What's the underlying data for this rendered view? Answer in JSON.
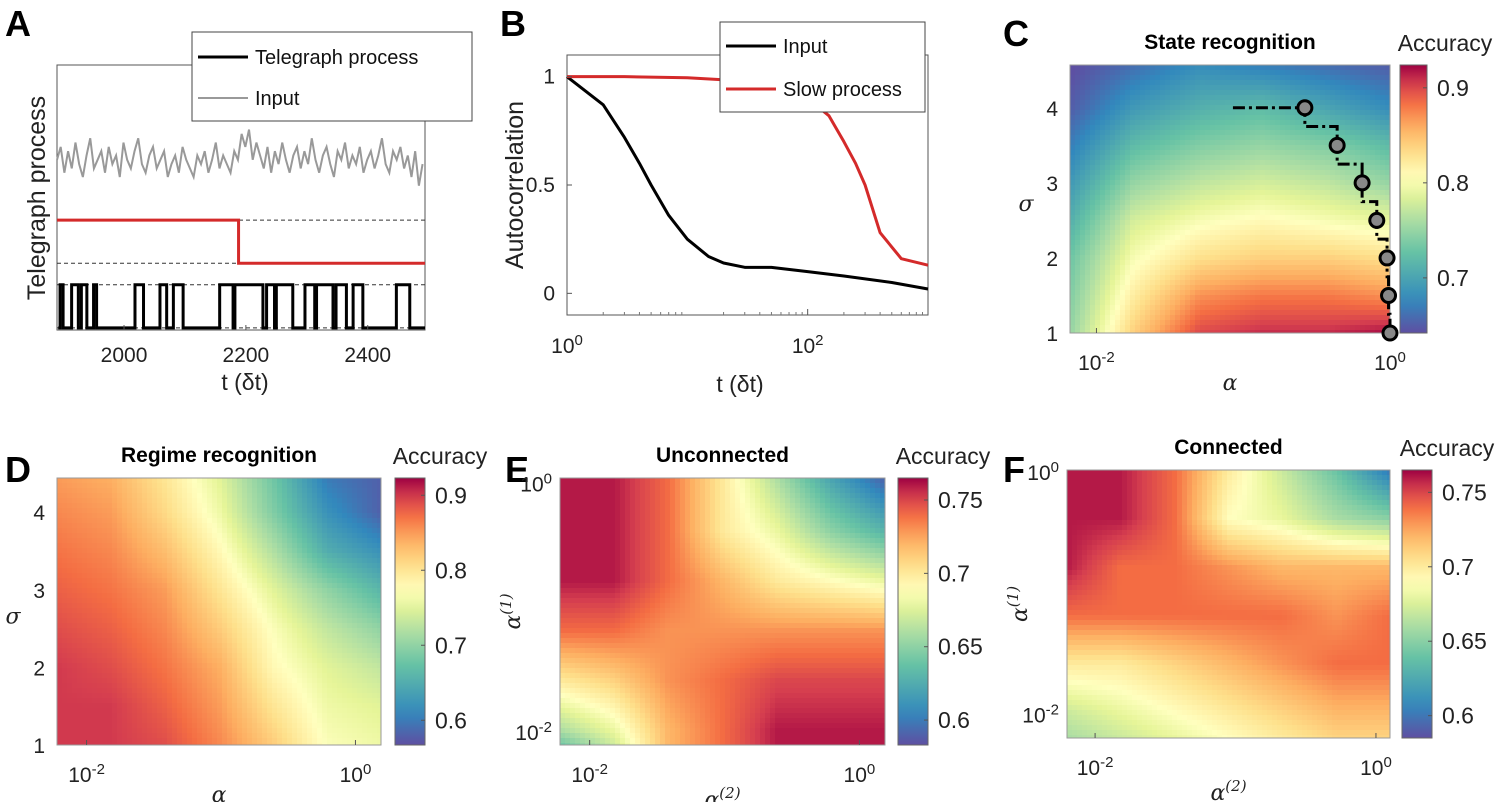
{
  "chart_data": [
    {
      "panel": "A",
      "type": "line",
      "ylabel": "Telegraph process",
      "xlabel": "t (δt)",
      "xlim": [
        1890,
        2494
      ],
      "ylim": [
        -0.05,
        6.1
      ],
      "xticks": [
        "2000",
        "2200",
        "2400"
      ],
      "xtick_values": [
        2000,
        2200,
        2400
      ],
      "legend": [
        "Telegraph process",
        "Input"
      ],
      "legend_placement": "top-right",
      "colors": {
        "telegraph": "#000000",
        "input": "#999999",
        "slow": "#d42a2a"
      },
      "telegraph_high_intervals": [
        [
          1895,
          1900
        ],
        [
          1914,
          1925
        ],
        [
          1930,
          1939
        ],
        [
          1950,
          1955
        ],
        [
          2018,
          2032
        ],
        [
          2059,
          2070
        ],
        [
          2081,
          2097
        ],
        [
          2157,
          2179
        ],
        [
          2182,
          2228
        ],
        [
          2234,
          2247
        ],
        [
          2250,
          2277
        ],
        [
          2297,
          2313
        ],
        [
          2316,
          2343
        ],
        [
          2348,
          2365
        ],
        [
          2376,
          2392
        ],
        [
          2447,
          2469
        ]
      ],
      "telegraph_levels": [
        0,
        1
      ],
      "slow_process": {
        "switch_t": 2188,
        "high": 2.5,
        "low": 1.5
      },
      "input": {
        "t_range": [
          1890,
          2490
        ],
        "values": [
          3.9,
          4.2,
          3.6,
          4.1,
          3.7,
          4.3,
          3.8,
          3.5,
          4.0,
          4.4,
          3.7,
          3.9,
          4.1,
          3.6,
          4.2,
          3.8,
          4.0,
          3.5,
          4.3,
          3.9,
          3.7,
          4.1,
          4.4,
          3.8,
          3.6,
          4.0,
          4.2,
          3.7,
          3.9,
          4.1,
          3.5,
          3.8,
          4.0,
          3.6,
          4.2,
          3.9,
          3.7,
          3.5,
          4.0,
          3.8,
          4.1,
          3.6,
          3.9,
          4.3,
          3.7,
          4.0,
          3.8,
          3.6,
          4.1,
          3.9,
          4.5,
          4.2,
          4.6,
          3.9,
          4.3,
          4.0,
          3.7,
          4.2,
          3.6,
          4.1,
          3.8,
          4.3,
          3.9,
          3.6,
          4.0,
          4.2,
          3.7,
          4.1,
          3.8,
          4.4,
          3.9,
          3.6,
          4.0,
          4.2,
          3.8,
          3.5,
          4.1,
          3.9,
          4.3,
          3.7,
          4.0,
          3.8,
          4.2,
          3.6,
          3.9,
          4.1,
          3.7,
          4.0,
          4.4,
          3.8,
          3.6,
          4.1,
          3.9,
          4.2,
          3.7,
          4.0,
          3.5,
          4.1,
          3.3,
          3.8
        ]
      },
      "dashed_levels": [
        0,
        1,
        1.5,
        2.5
      ]
    },
    {
      "panel": "B",
      "type": "line",
      "ylabel": "Autocorrelation",
      "xlabel": "t (δt)",
      "xscale": "log",
      "xlim": [
        1,
        1000
      ],
      "ylim": [
        -0.1,
        1.1
      ],
      "yticks": [
        "0",
        "0.5",
        "1"
      ],
      "ytick_values": [
        0,
        0.5,
        1
      ],
      "xticks": [
        {
          "base": "10",
          "exp": "0"
        },
        {
          "base": "10",
          "exp": "2"
        }
      ],
      "xtick_values": [
        1,
        100
      ],
      "legend_placement": "top-right",
      "series": [
        {
          "name": "Input",
          "color": "#000000",
          "t": [
            1,
            2,
            3,
            4,
            5,
            7,
            10,
            15,
            20,
            30,
            50,
            100,
            200,
            500,
            1000
          ],
          "values": [
            1,
            0.87,
            0.72,
            0.6,
            0.5,
            0.36,
            0.25,
            0.17,
            0.14,
            0.12,
            0.12,
            0.1,
            0.08,
            0.05,
            0.02
          ]
        },
        {
          "name": "Slow process",
          "color": "#d42a2a",
          "t": [
            1,
            3,
            10,
            30,
            60,
            100,
            150,
            200,
            250,
            300,
            400,
            600,
            1000
          ],
          "values": [
            1,
            1,
            0.995,
            0.98,
            0.95,
            0.9,
            0.82,
            0.7,
            0.6,
            0.5,
            0.28,
            0.16,
            0.13
          ]
        }
      ]
    },
    {
      "panel": "C",
      "type": "heatmap",
      "title": "State recognition",
      "colorbar_label": "Accuracy",
      "xlabel": {
        "base": "α",
        "exp": ""
      },
      "ylabel": "σ",
      "xscale": "log",
      "xlim_log10": [
        -2.18,
        0
      ],
      "ylim": [
        1,
        4.57
      ],
      "xticks": [
        {
          "base": "10",
          "exp": "-2"
        },
        {
          "base": "10",
          "exp": "0"
        }
      ],
      "xtick_values_log10": [
        -2,
        0
      ],
      "yticks": [
        "1",
        "2",
        "3",
        "4"
      ],
      "ytick_values": [
        1,
        2,
        3,
        4
      ],
      "clim": [
        0.642,
        0.924
      ],
      "cticks": [
        "0.7",
        "0.8",
        "0.9"
      ],
      "ctick_values": [
        0.7,
        0.8,
        0.9
      ],
      "grid_x_log10": [
        -2.18,
        -1.75,
        -1.3,
        -0.87,
        -0.43,
        0
      ],
      "grid_y": [
        4.57,
        4,
        3.5,
        3,
        2.5,
        2,
        1.5,
        1
      ],
      "z": [
        [
          0.64,
          0.66,
          0.68,
          0.67,
          0.66,
          0.65
        ],
        [
          0.65,
          0.69,
          0.71,
          0.72,
          0.7,
          0.68
        ],
        [
          0.67,
          0.72,
          0.74,
          0.75,
          0.74,
          0.72
        ],
        [
          0.69,
          0.75,
          0.77,
          0.78,
          0.77,
          0.75
        ],
        [
          0.71,
          0.78,
          0.8,
          0.81,
          0.8,
          0.79
        ],
        [
          0.73,
          0.8,
          0.83,
          0.84,
          0.84,
          0.83
        ],
        [
          0.74,
          0.82,
          0.87,
          0.88,
          0.88,
          0.87
        ],
        [
          0.75,
          0.84,
          0.9,
          0.91,
          0.91,
          0.92
        ]
      ],
      "optimal_path": {
        "start_log10_alpha": -1.07,
        "points_log10_alpha": [
          -0.58,
          -0.36,
          -0.19,
          -0.09,
          -0.02,
          -0.01,
          0
        ],
        "points_sigma": [
          4,
          3.5,
          3,
          2.5,
          2,
          1.5,
          1
        ]
      }
    },
    {
      "panel": "D",
      "type": "heatmap",
      "title": "Regime recognition",
      "colorbar_label": "Accuracy",
      "xlabel": {
        "base": "α",
        "exp": ""
      },
      "ylabel": "σ",
      "xscale": "log",
      "xlim_log10": [
        -2.22,
        0.19
      ],
      "ylim": [
        1,
        4.44
      ],
      "xticks": [
        {
          "base": "10",
          "exp": "-2"
        },
        {
          "base": "10",
          "exp": "0"
        }
      ],
      "xtick_values_log10": [
        -2,
        0
      ],
      "yticks": [
        "1",
        "2",
        "3",
        "4"
      ],
      "ytick_values": [
        1,
        2,
        3,
        4
      ],
      "clim": [
        0.567,
        0.923
      ],
      "cticks": [
        "0.6",
        "0.7",
        "0.8",
        "0.9"
      ],
      "ctick_values": [
        0.6,
        0.7,
        0.8,
        0.9
      ],
      "grid_x_log10": [
        -2.22,
        -1.82,
        -1.42,
        -1.01,
        -0.61,
        -0.21,
        0.19
      ],
      "grid_y": [
        4.44,
        4,
        3.5,
        3,
        2.5,
        2,
        1.5,
        1
      ],
      "z": [
        [
          0.85,
          0.84,
          0.8,
          0.75,
          0.68,
          0.6,
          0.58
        ],
        [
          0.86,
          0.85,
          0.81,
          0.76,
          0.69,
          0.62,
          0.58
        ],
        [
          0.87,
          0.86,
          0.83,
          0.78,
          0.72,
          0.65,
          0.62
        ],
        [
          0.88,
          0.87,
          0.85,
          0.8,
          0.75,
          0.7,
          0.66
        ],
        [
          0.89,
          0.88,
          0.86,
          0.82,
          0.77,
          0.73,
          0.7
        ],
        [
          0.9,
          0.89,
          0.87,
          0.84,
          0.78,
          0.75,
          0.73
        ],
        [
          0.9,
          0.9,
          0.88,
          0.85,
          0.8,
          0.76,
          0.75
        ],
        [
          0.9,
          0.9,
          0.89,
          0.86,
          0.82,
          0.77,
          0.76
        ]
      ]
    },
    {
      "panel": "E",
      "type": "heatmap",
      "title": "Unconnected",
      "colorbar_label": "Accuracy",
      "xlabel": {
        "base": "α",
        "exp": "(2)"
      },
      "ylabel": {
        "base": "α",
        "exp": "(1)"
      },
      "xscale": "log",
      "yscale": "log",
      "xlim_log10": [
        -2.22,
        0.19
      ],
      "ylim_log10": [
        -2.12,
        0.03
      ],
      "xticks": [
        {
          "base": "10",
          "exp": "-2"
        },
        {
          "base": "10",
          "exp": "0"
        }
      ],
      "xtick_values_log10": [
        -2,
        0
      ],
      "yticks": [
        {
          "base": "10",
          "exp": "-2"
        },
        {
          "base": "10",
          "exp": "0"
        }
      ],
      "ytick_values_log10": [
        -2,
        0
      ],
      "clim": [
        0.583,
        0.765
      ],
      "cticks": [
        "0.6",
        "0.65",
        "0.7",
        "0.75"
      ],
      "ctick_values": [
        0.6,
        0.65,
        0.7,
        0.75
      ],
      "grid_x_log10": [
        -2.22,
        -1.82,
        -1.42,
        -1.01,
        -0.61,
        -0.21,
        0.19
      ],
      "grid_y_log10": [
        0.03,
        -0.4,
        -0.8,
        -1.2,
        -1.6,
        -2.0,
        -2.12
      ],
      "z": [
        [
          0.76,
          0.76,
          0.74,
          0.7,
          0.66,
          0.62,
          0.59
        ],
        [
          0.76,
          0.76,
          0.74,
          0.7,
          0.68,
          0.65,
          0.63
        ],
        [
          0.76,
          0.76,
          0.74,
          0.72,
          0.7,
          0.69,
          0.68
        ],
        [
          0.74,
          0.74,
          0.73,
          0.73,
          0.73,
          0.73,
          0.73
        ],
        [
          0.7,
          0.71,
          0.73,
          0.74,
          0.75,
          0.75,
          0.75
        ],
        [
          0.66,
          0.68,
          0.72,
          0.74,
          0.76,
          0.76,
          0.76
        ],
        [
          0.64,
          0.67,
          0.72,
          0.74,
          0.76,
          0.76,
          0.76
        ]
      ]
    },
    {
      "panel": "F",
      "type": "heatmap",
      "title": "Connected",
      "colorbar_label": "Accuracy",
      "xlabel": {
        "base": "α",
        "exp": "(2)"
      },
      "ylabel": {
        "base": "α",
        "exp": "(1)"
      },
      "xscale": "log",
      "yscale": "log",
      "xlim_log10": [
        -2.2,
        0.1
      ],
      "ylim_log10": [
        -2.21,
        0
      ],
      "xticks": [
        {
          "base": "10",
          "exp": "-2"
        },
        {
          "base": "10",
          "exp": "0"
        }
      ],
      "xtick_values_log10": [
        -2,
        0
      ],
      "yticks": [
        {
          "base": "10",
          "exp": "-2"
        },
        {
          "base": "10",
          "exp": "0"
        }
      ],
      "ytick_values_log10": [
        -2,
        0
      ],
      "clim": [
        0.585,
        0.765
      ],
      "cticks": [
        "0.6",
        "0.65",
        "0.7",
        "0.75"
      ],
      "ctick_values": [
        0.6,
        0.65,
        0.7,
        0.75
      ],
      "grid_x_log10": [
        -2.2,
        -1.82,
        -1.43,
        -1.05,
        -0.67,
        -0.28,
        0.1
      ],
      "grid_y_log10": [
        0,
        -0.4,
        -0.8,
        -1.2,
        -1.6,
        -2.0,
        -2.21
      ],
      "z": [
        [
          0.76,
          0.76,
          0.74,
          0.7,
          0.67,
          0.64,
          0.6
        ],
        [
          0.76,
          0.76,
          0.74,
          0.69,
          0.68,
          0.66,
          0.65
        ],
        [
          0.76,
          0.74,
          0.74,
          0.73,
          0.72,
          0.72,
          0.72
        ],
        [
          0.74,
          0.74,
          0.74,
          0.74,
          0.74,
          0.73,
          0.74
        ],
        [
          0.7,
          0.7,
          0.71,
          0.72,
          0.73,
          0.74,
          0.74
        ],
        [
          0.67,
          0.68,
          0.69,
          0.7,
          0.71,
          0.72,
          0.72
        ],
        [
          0.66,
          0.67,
          0.68,
          0.69,
          0.7,
          0.71,
          0.71
        ]
      ]
    }
  ]
}
